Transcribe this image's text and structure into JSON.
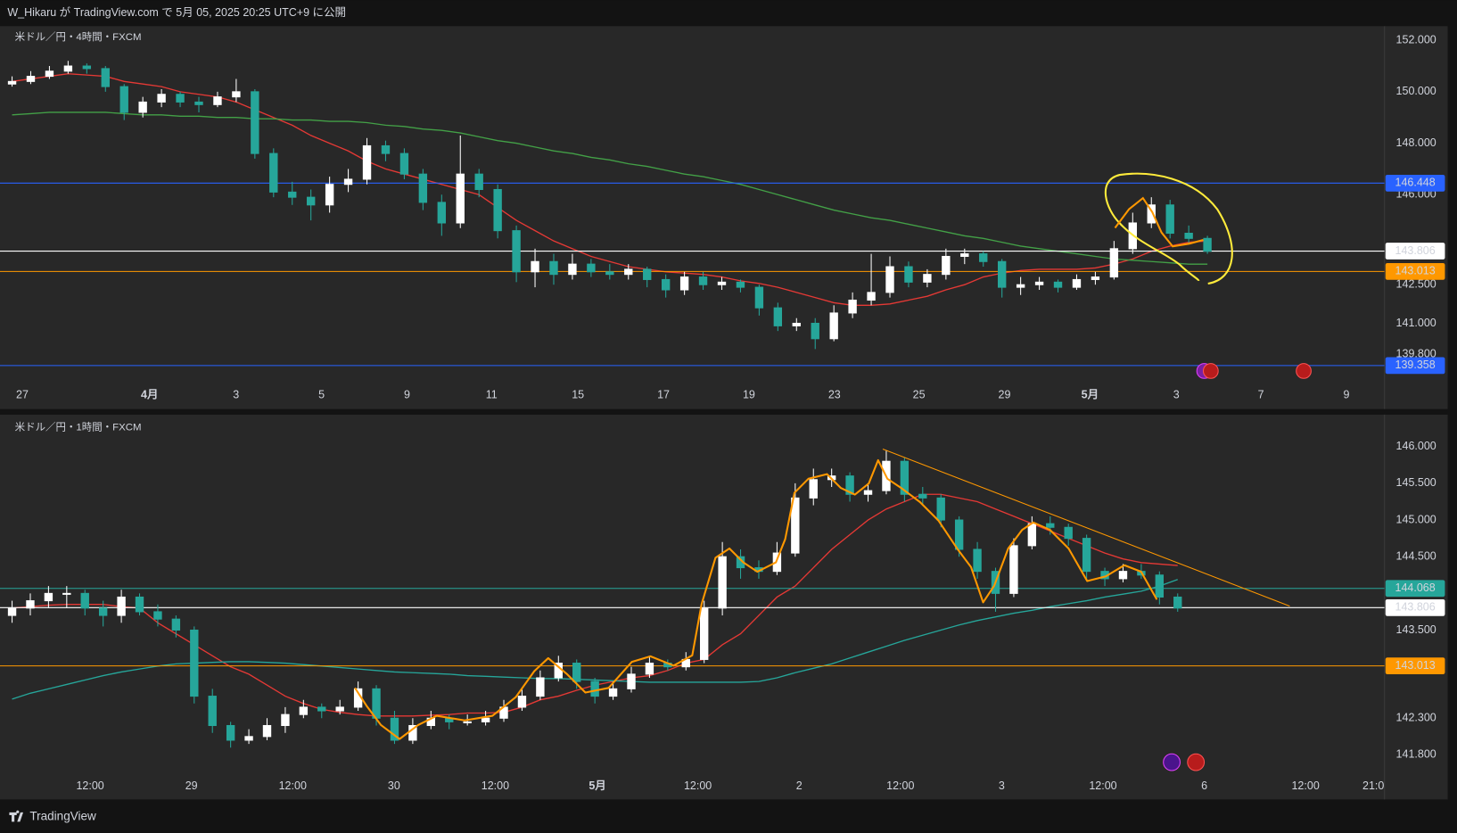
{
  "header": {
    "title": "W_Hikaru が TradingView.com で 5月 05, 2025 20:25 UTC+9 に公開"
  },
  "footer": {
    "brand": "TradingView"
  },
  "chart_data": [
    {
      "type": "candlestick",
      "title": "米ドル／円・4時間・FXCM",
      "up_color": "#ffffff",
      "down_color": "#26a69a",
      "candles": [
        [
          150.3,
          150.6,
          150.2,
          150.4
        ],
        [
          150.4,
          150.8,
          150.3,
          150.6
        ],
        [
          150.6,
          151.0,
          150.5,
          150.8
        ],
        [
          150.8,
          151.2,
          150.7,
          151.0
        ],
        [
          151.0,
          151.1,
          150.7,
          150.9
        ],
        [
          150.9,
          151.0,
          150.0,
          150.2
        ],
        [
          150.2,
          150.3,
          148.9,
          149.2
        ],
        [
          149.2,
          149.8,
          149.0,
          149.6
        ],
        [
          149.6,
          150.1,
          149.4,
          149.9
        ],
        [
          149.9,
          150.0,
          149.4,
          149.6
        ],
        [
          149.6,
          149.8,
          149.2,
          149.5
        ],
        [
          149.5,
          150.0,
          149.4,
          149.8
        ],
        [
          149.8,
          150.5,
          149.6,
          150.0
        ],
        [
          150.0,
          150.1,
          147.4,
          147.6
        ],
        [
          147.6,
          147.8,
          145.9,
          146.1
        ],
        [
          146.1,
          146.5,
          145.6,
          145.9
        ],
        [
          145.9,
          146.2,
          145.0,
          145.6
        ],
        [
          145.6,
          146.7,
          145.3,
          146.4
        ],
        [
          146.4,
          147.0,
          146.1,
          146.6
        ],
        [
          146.6,
          148.2,
          146.4,
          147.9
        ],
        [
          147.9,
          148.1,
          147.3,
          147.6
        ],
        [
          147.6,
          147.8,
          146.6,
          146.8
        ],
        [
          146.8,
          147.0,
          145.4,
          145.7
        ],
        [
          145.7,
          146.0,
          144.4,
          144.9
        ],
        [
          144.9,
          148.3,
          144.7,
          146.8
        ],
        [
          146.8,
          147.0,
          145.9,
          146.2
        ],
        [
          146.2,
          146.4,
          144.3,
          144.6
        ],
        [
          144.6,
          144.8,
          142.6,
          143.0
        ],
        [
          143.0,
          143.9,
          142.4,
          143.4
        ],
        [
          143.4,
          143.7,
          142.5,
          142.9
        ],
        [
          142.9,
          143.7,
          142.7,
          143.3
        ],
        [
          143.3,
          143.5,
          142.8,
          143.0
        ],
        [
          143.0,
          143.3,
          142.7,
          142.9
        ],
        [
          142.9,
          143.3,
          142.7,
          143.1
        ],
        [
          143.1,
          143.2,
          142.4,
          142.7
        ],
        [
          142.7,
          142.9,
          142.0,
          142.3
        ],
        [
          142.3,
          143.0,
          142.1,
          142.8
        ],
        [
          142.8,
          143.0,
          142.3,
          142.5
        ],
        [
          142.5,
          142.8,
          142.3,
          142.6
        ],
        [
          142.6,
          142.7,
          142.2,
          142.4
        ],
        [
          142.4,
          142.5,
          141.3,
          141.6
        ],
        [
          141.6,
          141.8,
          140.7,
          140.9
        ],
        [
          140.9,
          141.2,
          140.7,
          141.0
        ],
        [
          141.0,
          141.2,
          140.0,
          140.4
        ],
        [
          140.4,
          141.7,
          140.3,
          141.4
        ],
        [
          141.4,
          142.2,
          141.2,
          141.9
        ],
        [
          141.9,
          143.7,
          141.7,
          142.2
        ],
        [
          142.2,
          143.6,
          142.0,
          143.2
        ],
        [
          143.2,
          143.4,
          142.4,
          142.6
        ],
        [
          142.6,
          143.1,
          142.4,
          142.9
        ],
        [
          142.9,
          143.9,
          142.7,
          143.6
        ],
        [
          143.6,
          143.9,
          143.3,
          143.7
        ],
        [
          143.7,
          143.8,
          143.2,
          143.4
        ],
        [
          143.4,
          143.5,
          142.0,
          142.4
        ],
        [
          142.4,
          142.8,
          142.1,
          142.5
        ],
        [
          142.5,
          142.8,
          142.3,
          142.6
        ],
        [
          142.6,
          142.7,
          142.2,
          142.4
        ],
        [
          142.4,
          142.9,
          142.3,
          142.7
        ],
        [
          142.7,
          143.0,
          142.5,
          142.8
        ],
        [
          142.8,
          144.2,
          142.7,
          143.9
        ],
        [
          143.9,
          145.3,
          143.7,
          144.9
        ],
        [
          144.9,
          145.9,
          144.7,
          145.6
        ],
        [
          145.6,
          145.8,
          144.3,
          144.5
        ],
        [
          144.5,
          144.8,
          144.1,
          144.3
        ],
        [
          144.3,
          144.4,
          143.7,
          143.8
        ]
      ],
      "series": [
        {
          "color": "#e53935",
          "values": [
            150.4,
            150.5,
            150.6,
            150.7,
            150.65,
            150.6,
            150.4,
            150.3,
            150.2,
            150.0,
            149.9,
            149.8,
            149.6,
            149.3,
            149.0,
            148.7,
            148.3,
            148.0,
            147.7,
            147.3,
            147.0,
            146.8,
            146.6,
            146.4,
            146.2,
            146.0,
            145.5,
            145.0,
            144.6,
            144.2,
            143.9,
            143.6,
            143.4,
            143.2,
            143.1,
            143.0,
            142.95,
            142.9,
            142.8,
            142.65,
            142.55,
            142.4,
            142.2,
            142.0,
            141.8,
            141.7,
            141.7,
            141.75,
            141.9,
            142.05,
            142.3,
            142.5,
            142.8,
            142.95,
            143.05,
            143.1,
            143.1,
            143.1,
            143.15,
            143.3,
            143.5,
            143.8,
            144.0,
            144.15,
            144.2
          ]
        },
        {
          "color": "#43a047",
          "values": [
            149.1,
            149.15,
            149.2,
            149.2,
            149.2,
            149.2,
            149.15,
            149.1,
            149.1,
            149.05,
            149.05,
            149.0,
            149.0,
            148.95,
            148.95,
            148.9,
            148.9,
            148.85,
            148.85,
            148.8,
            148.7,
            148.65,
            148.55,
            148.5,
            148.4,
            148.25,
            148.1,
            148.0,
            147.85,
            147.7,
            147.6,
            147.45,
            147.35,
            147.2,
            147.1,
            146.95,
            146.8,
            146.7,
            146.55,
            146.4,
            146.2,
            146.0,
            145.8,
            145.6,
            145.4,
            145.25,
            145.1,
            145.0,
            144.85,
            144.7,
            144.55,
            144.4,
            144.3,
            144.15,
            144.0,
            143.9,
            143.8,
            143.7,
            143.6,
            143.5,
            143.45,
            143.4,
            143.35,
            143.3,
            143.3
          ]
        }
      ],
      "ylim": [
        138.93,
        152.55
      ],
      "yticks": [
        {
          "value": 152,
          "label": "152.000"
        },
        {
          "value": 150,
          "label": "150.000"
        },
        {
          "value": 148,
          "label": "148.000"
        },
        {
          "value": 146,
          "label": "146.000"
        },
        {
          "value": 142.5,
          "label": "142.500"
        },
        {
          "value": 141,
          "label": "141.000"
        },
        {
          "value": 139.8,
          "label": "139.800"
        }
      ],
      "levels": [
        {
          "value": 146.448,
          "color": "#2962ff"
        },
        {
          "value": 143.806,
          "color": "#ffffff"
        },
        {
          "value": 143.013,
          "color": "#ff9800"
        },
        {
          "value": 139.358,
          "color": "#2962ff"
        }
      ],
      "x_labels": [
        "27",
        "4月",
        "3",
        "5",
        "9",
        "11",
        "15",
        "17",
        "19",
        "23",
        "25",
        "29",
        "5月",
        "3",
        "7",
        "9"
      ]
    },
    {
      "type": "candlestick",
      "title": "米ドル／円・1時間・FXCM",
      "up_color": "#ffffff",
      "down_color": "#26a69a",
      "candles": [
        [
          143.7,
          143.9,
          143.6,
          143.8
        ],
        [
          143.8,
          144.0,
          143.7,
          143.9
        ],
        [
          143.9,
          144.1,
          143.8,
          144.0
        ],
        [
          144.0,
          144.1,
          143.8,
          144.0
        ],
        [
          144.0,
          144.05,
          143.7,
          143.8
        ],
        [
          143.8,
          143.9,
          143.55,
          143.7
        ],
        [
          143.7,
          144.05,
          143.6,
          143.95
        ],
        [
          143.95,
          144.0,
          143.7,
          143.75
        ],
        [
          143.75,
          143.85,
          143.55,
          143.65
        ],
        [
          143.65,
          143.7,
          143.4,
          143.5
        ],
        [
          143.5,
          143.55,
          142.5,
          142.6
        ],
        [
          142.6,
          142.7,
          142.1,
          142.2
        ],
        [
          142.2,
          142.25,
          141.9,
          142.0
        ],
        [
          142.0,
          142.15,
          141.95,
          142.05
        ],
        [
          142.05,
          142.3,
          142.0,
          142.2
        ],
        [
          142.2,
          142.45,
          142.1,
          142.35
        ],
        [
          142.35,
          142.55,
          142.3,
          142.45
        ],
        [
          142.45,
          142.5,
          142.3,
          142.4
        ],
        [
          142.4,
          142.55,
          142.35,
          142.45
        ],
        [
          142.45,
          142.8,
          142.4,
          142.7
        ],
        [
          142.7,
          142.75,
          142.2,
          142.3
        ],
        [
          142.3,
          142.4,
          141.95,
          142.0
        ],
        [
          142.0,
          142.3,
          141.95,
          142.2
        ],
        [
          142.2,
          142.4,
          142.15,
          142.3
        ],
        [
          142.3,
          142.35,
          142.15,
          142.25
        ],
        [
          142.25,
          142.35,
          142.2,
          142.25
        ],
        [
          142.25,
          142.4,
          142.2,
          142.3
        ],
        [
          142.3,
          142.55,
          142.25,
          142.45
        ],
        [
          142.45,
          142.7,
          142.4,
          142.6
        ],
        [
          142.6,
          142.95,
          142.55,
          142.85
        ],
        [
          142.85,
          143.15,
          142.8,
          143.05
        ],
        [
          143.05,
          143.1,
          142.7,
          142.8
        ],
        [
          142.8,
          142.85,
          142.5,
          142.6
        ],
        [
          142.6,
          142.8,
          142.55,
          142.7
        ],
        [
          142.7,
          143.0,
          142.65,
          142.9
        ],
        [
          142.9,
          143.15,
          142.85,
          143.05
        ],
        [
          143.05,
          143.1,
          142.95,
          143.0
        ],
        [
          143.0,
          143.2,
          142.95,
          143.1
        ],
        [
          143.1,
          143.9,
          143.05,
          143.8
        ],
        [
          143.8,
          144.7,
          143.7,
          144.5
        ],
        [
          144.5,
          144.6,
          144.2,
          144.35
        ],
        [
          144.35,
          144.45,
          144.2,
          144.3
        ],
        [
          144.3,
          144.7,
          144.25,
          144.55
        ],
        [
          144.55,
          145.5,
          144.5,
          145.3
        ],
        [
          145.3,
          145.7,
          145.2,
          145.55
        ],
        [
          145.55,
          145.7,
          145.45,
          145.6
        ],
        [
          145.6,
          145.65,
          145.25,
          145.35
        ],
        [
          145.35,
          145.5,
          145.25,
          145.4
        ],
        [
          145.4,
          145.95,
          145.35,
          145.8
        ],
        [
          145.8,
          145.85,
          145.25,
          145.35
        ],
        [
          145.35,
          145.45,
          145.2,
          145.3
        ],
        [
          145.3,
          145.35,
          144.9,
          145.0
        ],
        [
          145.0,
          145.05,
          144.5,
          144.6
        ],
        [
          144.6,
          144.7,
          144.2,
          144.3
        ],
        [
          144.3,
          144.35,
          143.75,
          144.0
        ],
        [
          144.0,
          144.75,
          143.95,
          144.65
        ],
        [
          144.65,
          145.05,
          144.6,
          144.95
        ],
        [
          144.95,
          145.05,
          144.8,
          144.9
        ],
        [
          144.9,
          144.95,
          144.65,
          144.75
        ],
        [
          144.75,
          144.8,
          144.2,
          144.3
        ],
        [
          144.3,
          144.35,
          144.1,
          144.2
        ],
        [
          144.2,
          144.4,
          144.15,
          144.3
        ],
        [
          144.3,
          144.4,
          144.2,
          144.25
        ],
        [
          144.25,
          144.3,
          143.85,
          143.95
        ],
        [
          143.95,
          144.0,
          143.75,
          143.8
        ]
      ],
      "series": [
        {
          "color": "#e53935",
          "values": [
            143.8,
            143.82,
            143.84,
            143.85,
            143.85,
            143.85,
            143.82,
            143.8,
            143.6,
            143.45,
            143.3,
            143.15,
            143.0,
            142.9,
            142.75,
            142.6,
            142.5,
            142.42,
            142.38,
            142.35,
            142.33,
            142.33,
            142.33,
            142.34,
            142.35,
            142.37,
            142.37,
            142.38,
            142.45,
            142.55,
            142.6,
            142.68,
            142.75,
            142.8,
            142.85,
            142.88,
            142.95,
            143.05,
            143.1,
            143.3,
            143.45,
            143.7,
            143.95,
            144.1,
            144.35,
            144.6,
            144.8,
            145.0,
            145.15,
            145.25,
            145.35,
            145.35,
            145.3,
            145.25,
            145.15,
            145.05,
            144.95,
            144.85,
            144.75,
            144.65,
            144.55,
            144.47,
            144.42,
            144.4,
            144.38
          ]
        },
        {
          "color": "#26a69a",
          "values": [
            142.56,
            142.64,
            142.7,
            142.76,
            142.82,
            142.88,
            142.93,
            142.97,
            143.01,
            143.04,
            143.05,
            143.06,
            143.07,
            143.07,
            143.06,
            143.05,
            143.03,
            143.01,
            142.99,
            142.97,
            142.95,
            142.93,
            142.92,
            142.91,
            142.9,
            142.88,
            142.87,
            142.86,
            142.85,
            142.84,
            142.84,
            142.83,
            142.82,
            142.81,
            142.8,
            142.79,
            142.79,
            142.79,
            142.79,
            142.79,
            142.79,
            142.8,
            142.85,
            142.92,
            142.98,
            143.04,
            143.12,
            143.2,
            143.28,
            143.36,
            143.43,
            143.5,
            143.57,
            143.63,
            143.68,
            143.73,
            143.77,
            143.82,
            143.86,
            143.9,
            143.95,
            143.99,
            144.03,
            144.1,
            144.19
          ]
        }
      ],
      "ylim": [
        141.51,
        146.41
      ],
      "yticks": [
        {
          "value": 146,
          "label": "146.000"
        },
        {
          "value": 145.5,
          "label": "145.500"
        },
        {
          "value": 145,
          "label": "145.000"
        },
        {
          "value": 144.5,
          "label": "144.500"
        },
        {
          "value": 143.5,
          "label": "143.500"
        },
        {
          "value": 142.3,
          "label": "142.300"
        },
        {
          "value": 141.8,
          "label": "141.800"
        }
      ],
      "levels": [
        {
          "value": 144.068,
          "color": "#26a69a"
        },
        {
          "value": 143.806,
          "color": "#ffffff"
        },
        {
          "value": 143.013,
          "color": "#ff9800"
        }
      ],
      "x_labels": [
        "12:00",
        "29",
        "12:00",
        "30",
        "12:00",
        "5月",
        "12:00",
        "2",
        "12:00",
        "3",
        "12:00",
        "6",
        "12:00",
        "21:0"
      ]
    }
  ]
}
